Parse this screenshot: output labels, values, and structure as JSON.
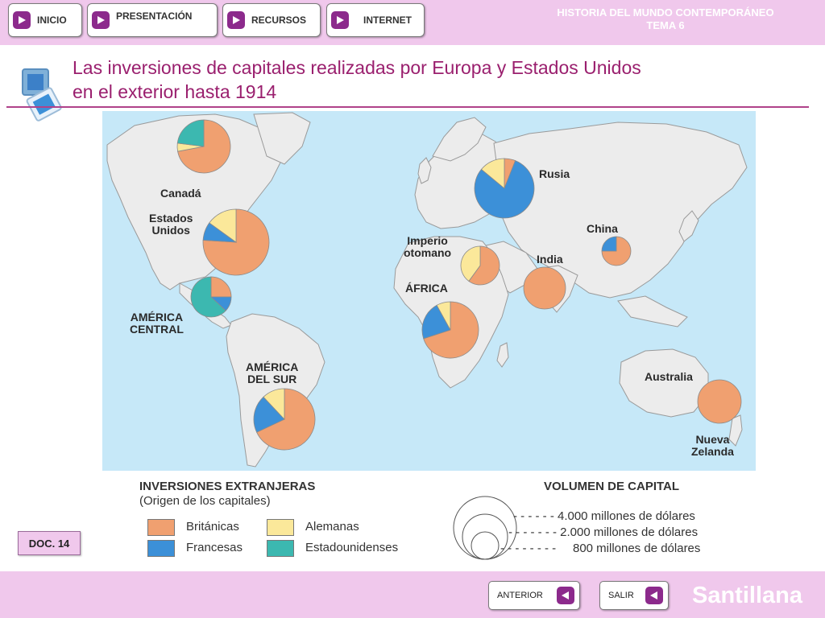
{
  "nav": {
    "inicio": "INICIO",
    "presentacion": "PRESENTACIÓN",
    "recursos": "RECURSOS",
    "internet": "INTERNET"
  },
  "course": {
    "title": "HISTORIA DEL MUNDO CONTEMPORÁNEO",
    "unit": "TEMA 6"
  },
  "page": {
    "title_line1": "Las inversiones de capitales realizadas por Europa y Estados Unidos",
    "title_line2": "en el exterior hasta 1914",
    "doc_tag": "DOC. 14"
  },
  "colors": {
    "britanicas": "#f0a070",
    "francesas": "#3c90d8",
    "alemanas": "#fbe89a",
    "estadounidenses": "#3cb8b0",
    "ocean": "#c6e8f8",
    "land": "#ececec",
    "accent": "#8c2a8c"
  },
  "map": {
    "regions": [
      {
        "label": "Canadá",
        "shares": {
          "britanicas": 0.72,
          "alemanas": 0.05,
          "estadounidenses": 0.23
        }
      },
      {
        "label": "Estados\nUnidos",
        "shares": {
          "britanicas": 0.76,
          "francesas": 0.09,
          "alemanas": 0.15
        }
      },
      {
        "label": "AMÉRICA\nCENTRAL",
        "shares": {
          "britanicas": 0.25,
          "francesas": 0.12,
          "estadounidenses": 0.63
        }
      },
      {
        "label": "AMÉRICA\nDEL SUR",
        "shares": {
          "britanicas": 0.68,
          "francesas": 0.2,
          "alemanas": 0.12
        }
      },
      {
        "label": "Rusia",
        "shares": {
          "britanicas": 0.06,
          "francesas": 0.8,
          "alemanas": 0.14
        }
      },
      {
        "label": "Imperio\notomano",
        "shares": {
          "britanicas": 0.6,
          "alemanas": 0.4
        }
      },
      {
        "label": "ÁFRICA",
        "shares": {
          "britanicas": 0.7,
          "francesas": 0.22,
          "alemanas": 0.08
        }
      },
      {
        "label": "India",
        "shares": {
          "britanicas": 1.0
        }
      },
      {
        "label": "China",
        "shares": {
          "britanicas": 0.75,
          "francesas": 0.25
        }
      },
      {
        "label": "Australia",
        "shares": {}
      },
      {
        "label": "Nueva\nZelanda",
        "shares": {
          "britanicas": 1.0
        }
      }
    ]
  },
  "legend": {
    "title": "INVERSIONES EXTRANJERAS",
    "subtitle": "(Origen de los capitales)",
    "items": [
      "Británicas",
      "Alemanas",
      "Francesas",
      "Estadounidenses"
    ],
    "volume_title": "VOLUMEN DE CAPITAL",
    "volume_items": [
      "- - - - - - 4.000 millones de dólares",
      "- - - - - - - 2.000 millones de dólares",
      "- - - - - - - -     800 millones de dólares"
    ]
  },
  "footer": {
    "anterior": "ANTERIOR",
    "salir": "SALIR",
    "brand": "Santillana"
  }
}
